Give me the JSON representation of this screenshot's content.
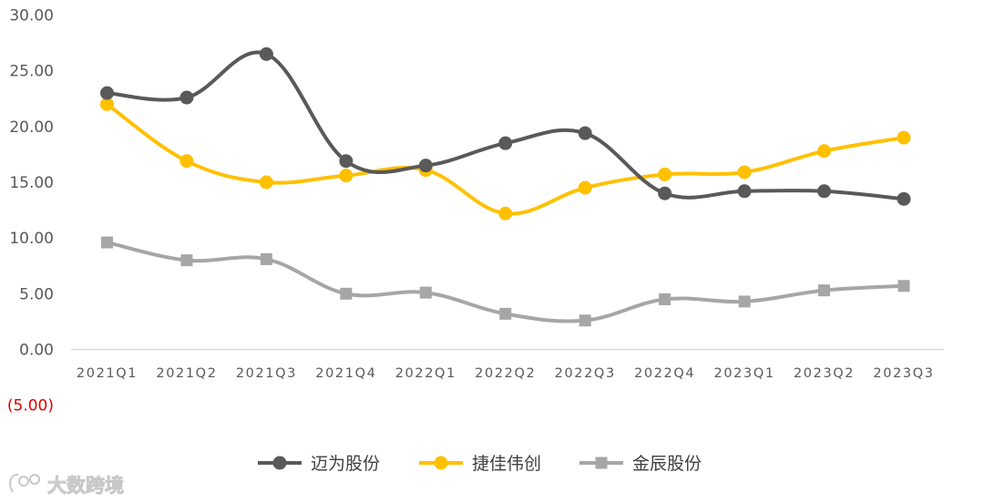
{
  "chart_data": {
    "type": "line",
    "title": "",
    "xlabel": "",
    "ylabel": "",
    "categories": [
      "2021Q1",
      "2021Q2",
      "2021Q3",
      "2021Q4",
      "2022Q1",
      "2022Q2",
      "2022Q3",
      "2022Q4",
      "2023Q1",
      "2023Q2",
      "2023Q3"
    ],
    "y_ticks": [
      "30.00",
      "25.00",
      "20.00",
      "15.00",
      "10.00",
      "5.00",
      "0.00",
      "(5.00)"
    ],
    "ylim": [
      -5,
      30
    ],
    "grid": false,
    "legend_position": "bottom-center",
    "series": [
      {
        "name": "迈为股份",
        "color": "#595959",
        "marker": "circle",
        "values": [
          23.0,
          22.6,
          26.5,
          16.9,
          16.5,
          18.5,
          19.4,
          14.0,
          14.2,
          14.2,
          13.5
        ]
      },
      {
        "name": "捷佳伟创",
        "color": "#ffc000",
        "marker": "circle",
        "values": [
          22.0,
          16.9,
          15.0,
          15.6,
          16.1,
          12.2,
          14.5,
          15.7,
          15.9,
          17.8,
          19.0
        ]
      },
      {
        "name": "金辰股份",
        "color": "#a6a6a6",
        "marker": "square",
        "values": [
          9.6,
          8.0,
          8.1,
          5.0,
          5.1,
          3.2,
          2.6,
          4.5,
          4.3,
          5.3,
          5.7
        ]
      }
    ]
  },
  "watermark": {
    "text": "大数跨境"
  },
  "colors": {
    "axis": "#d9d9d9",
    "negative_tick": "#e00000"
  }
}
